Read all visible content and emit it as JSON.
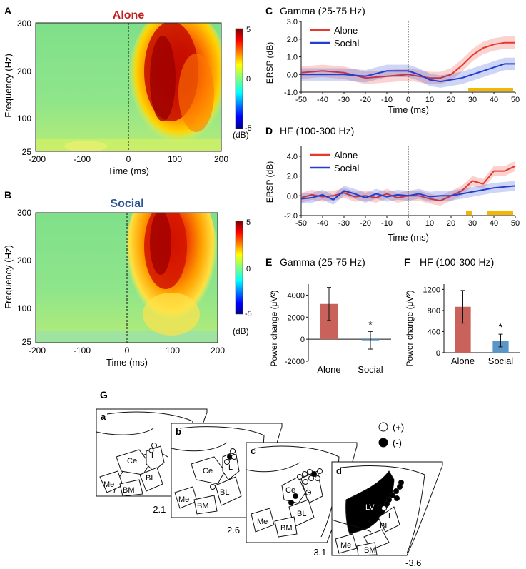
{
  "panel_letters": {
    "A": "A",
    "B": "B",
    "C": "C",
    "D": "D",
    "E": "E",
    "F": "F",
    "G": "G"
  },
  "colors": {
    "alone": "#e8372c",
    "social": "#1f3fd1",
    "alone_bar": "#c8625a",
    "social_bar": "#5b96c9",
    "sig": "#f2b800",
    "alone_title": "#c0201f",
    "social_title": "#2f5597"
  },
  "spectrogram_A": {
    "title": "Alone",
    "ylabel": "Frequency (Hz)",
    "xlabel": "Time (ms)",
    "yticks": [
      "300",
      "200",
      "100",
      "25"
    ],
    "xticks": [
      "-200",
      "-100",
      "0",
      "100",
      "200"
    ],
    "cbar_ticks": [
      "5",
      "0",
      "-5"
    ],
    "cbar_unit": "(dB)"
  },
  "spectrogram_B": {
    "title": "Social",
    "ylabel": "Frequency (Hz)",
    "xlabel": "Time (ms)",
    "yticks": [
      "300",
      "200",
      "100",
      "25"
    ],
    "xticks": [
      "-200",
      "-100",
      "0",
      "100",
      "200"
    ],
    "cbar_ticks": [
      "5",
      "0",
      "-5"
    ],
    "cbar_unit": "(dB)"
  },
  "chart_data": [
    {
      "type": "line",
      "id": "C",
      "title": "Gamma (25-75 Hz)",
      "xlabel": "Time (ms)",
      "ylabel": "ERSP (dB)",
      "xlim": [
        -50,
        50
      ],
      "ylim": [
        -1,
        3
      ],
      "xticks": [
        "-50",
        "-40",
        "-30",
        "-20",
        "-10",
        "0",
        "10",
        "20",
        "30",
        "40",
        "50"
      ],
      "yticks": [
        "3.0",
        "2.0",
        "1.0",
        "0.0",
        "-1.0"
      ],
      "legend": [
        "Alone",
        "Social"
      ],
      "x": [
        -50,
        -40,
        -30,
        -20,
        -10,
        0,
        5,
        10,
        15,
        20,
        25,
        30,
        35,
        40,
        45,
        50
      ],
      "series": [
        {
          "name": "Alone",
          "values": [
            0.1,
            0.2,
            0.1,
            -0.2,
            -0.1,
            0.0,
            -0.1,
            -0.2,
            -0.2,
            0.0,
            0.5,
            1.1,
            1.5,
            1.7,
            1.8,
            1.8
          ],
          "band": 0.35
        },
        {
          "name": "Social",
          "values": [
            0.0,
            0.0,
            0.0,
            -0.1,
            0.2,
            0.2,
            0.0,
            -0.3,
            -0.4,
            -0.3,
            -0.2,
            0.0,
            0.2,
            0.4,
            0.6,
            0.6
          ],
          "band": 0.35
        }
      ],
      "significance": [
        [
          28,
          49
        ]
      ]
    },
    {
      "type": "line",
      "id": "D",
      "title": "HF (100-300 Hz)",
      "xlabel": "Time (ms)",
      "ylabel": "ERSP (dB)",
      "xlim": [
        -50,
        50
      ],
      "ylim": [
        -2,
        5
      ],
      "xticks": [
        "-50",
        "-40",
        "-30",
        "-20",
        "-10",
        "0",
        "10",
        "20",
        "30",
        "40",
        "50"
      ],
      "yticks": [
        "4.0",
        "2.0",
        "0.0",
        "-2.0"
      ],
      "legend": [
        "Alone",
        "Social"
      ],
      "x": [
        -50,
        -45,
        -40,
        -35,
        -30,
        -25,
        -20,
        -15,
        -10,
        -5,
        0,
        5,
        10,
        15,
        20,
        25,
        30,
        35,
        40,
        45,
        50
      ],
      "series": [
        {
          "name": "Alone",
          "values": [
            -0.2,
            0.1,
            -0.1,
            0.0,
            0.3,
            -0.1,
            0.0,
            -0.2,
            0.2,
            -0.2,
            0.0,
            0.0,
            -0.3,
            -0.5,
            0.0,
            0.5,
            1.5,
            1.2,
            2.5,
            2.5,
            3.0
          ],
          "band": 0.5
        },
        {
          "name": "Social",
          "values": [
            -0.3,
            -0.2,
            0.1,
            -0.4,
            0.5,
            0.2,
            -0.2,
            0.2,
            -0.1,
            0.1,
            0.0,
            0.2,
            -0.1,
            0.0,
            0.0,
            0.2,
            0.4,
            0.6,
            0.8,
            0.9,
            1.0
          ],
          "band": 0.5
        }
      ],
      "significance": [
        [
          27,
          30
        ],
        [
          37,
          49
        ]
      ]
    },
    {
      "type": "bar",
      "id": "E",
      "title": "Gamma (25-75 Hz)",
      "ylabel": "Power change (μV²)",
      "categories": [
        "Alone",
        "Social"
      ],
      "values": [
        3200,
        -100
      ],
      "errors": [
        1500,
        800
      ],
      "ylim": [
        -2000,
        5000
      ],
      "yticks": [
        "4000",
        "2000",
        "0",
        "-2000"
      ],
      "annotation": "*"
    },
    {
      "type": "bar",
      "id": "F",
      "title": "HF (100-300 Hz)",
      "ylabel": "Power change (μV²)",
      "categories": [
        "Alone",
        "Social"
      ],
      "values": [
        870,
        230
      ],
      "errors": [
        310,
        120
      ],
      "ylim": [
        0,
        1300
      ],
      "yticks": [
        "1200",
        "800",
        "400",
        "0"
      ],
      "annotation": "*"
    }
  ],
  "histology": {
    "legend": {
      "open": "(+)",
      "filled": "(-)"
    },
    "sections": [
      {
        "letter": "a",
        "coord": "-2.1",
        "regions": [
          "Ce",
          "L",
          "BL",
          "Me",
          "BM"
        ]
      },
      {
        "letter": "b",
        "coord": "2.6",
        "regions": [
          "Ce",
          "L",
          "BL",
          "Me",
          "BM"
        ]
      },
      {
        "letter": "c",
        "coord": "-3.1",
        "regions": [
          "Ce",
          "L",
          "BL",
          "Me",
          "BM"
        ]
      },
      {
        "letter": "d",
        "coord": "-3.6",
        "regions": [
          "LV",
          "L",
          "BL",
          "Me",
          "BM"
        ]
      }
    ]
  }
}
